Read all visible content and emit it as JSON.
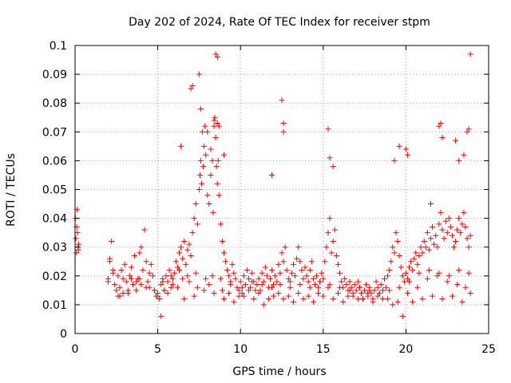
{
  "chart_data": {
    "type": "scatter",
    "title": "Day 202 of 2024, Rate Of TEC Index for receiver stpm",
    "xlabel": "GPS time / hours",
    "ylabel": "ROTI / TECUs",
    "xlim": [
      0,
      25
    ],
    "ylim": [
      0,
      0.1
    ],
    "x_ticks": [
      "0",
      "5",
      "10",
      "15",
      "20",
      "25"
    ],
    "y_ticks": [
      "0",
      "0.01",
      "0.02",
      "0.03",
      "0.04",
      "0.05",
      "0.06",
      "0.07",
      "0.08",
      "0.09",
      "0.1"
    ],
    "grid": true,
    "legend": "none",
    "marker": "+",
    "series_color": "#ff0000",
    "series": [
      {
        "x": [
          0.02,
          0.05,
          0.08,
          0.1,
          0.12,
          0.15,
          0.18,
          0.2,
          0.22,
          2.0,
          2.1,
          2.2,
          2.3,
          2.4,
          2.5,
          2.6,
          2.7,
          2.8,
          2.9,
          3.0,
          3.1,
          3.2,
          3.3,
          3.4,
          3.5,
          3.6,
          3.7,
          3.8,
          3.9,
          4.0,
          4.1,
          4.2,
          4.3,
          4.4,
          4.5,
          4.6,
          4.7,
          4.8,
          4.9,
          5.0,
          5.1,
          5.2,
          5.3,
          5.4,
          5.5,
          5.6,
          5.7,
          5.8,
          5.9,
          6.0,
          6.1,
          6.2,
          6.3,
          6.4,
          6.5,
          6.6,
          6.7,
          6.8,
          6.9,
          7.0,
          7.1,
          7.2,
          7.3,
          7.4,
          7.5,
          7.55,
          7.6,
          7.65,
          7.7,
          7.75,
          7.8,
          7.85,
          7.9,
          8.0,
          8.1,
          8.2,
          8.3,
          8.35,
          8.4,
          8.45,
          8.5,
          8.55,
          8.6,
          8.65,
          8.7,
          8.8,
          8.9,
          9.0,
          9.1,
          9.2,
          9.3,
          9.4,
          9.5,
          9.6,
          9.7,
          9.8,
          9.9,
          10.0,
          10.1,
          10.2,
          10.3,
          10.4,
          10.5,
          10.6,
          10.7,
          10.8,
          10.9,
          11.0,
          11.1,
          11.2,
          11.3,
          11.4,
          11.5,
          11.6,
          11.7,
          11.8,
          11.9,
          12.0,
          12.1,
          12.2,
          12.3,
          12.4,
          12.5,
          12.6,
          12.7,
          12.8,
          12.9,
          13.0,
          13.1,
          13.2,
          13.3,
          13.4,
          13.5,
          13.6,
          13.7,
          13.8,
          13.9,
          14.0,
          14.1,
          14.2,
          14.3,
          14.4,
          14.5,
          14.6,
          14.7,
          14.8,
          14.9,
          15.0,
          15.1,
          15.2,
          15.3,
          15.4,
          15.5,
          15.6,
          15.7,
          15.8,
          15.9,
          16.0,
          16.1,
          16.2,
          16.3,
          16.4,
          16.5,
          16.6,
          16.7,
          16.8,
          16.9,
          17.0,
          17.1,
          17.2,
          17.3,
          17.4,
          17.5,
          17.6,
          17.7,
          17.8,
          17.9,
          18.0,
          18.1,
          18.2,
          18.3,
          18.4,
          18.5,
          18.6,
          18.7,
          18.8,
          18.9,
          19.0,
          19.1,
          19.2,
          19.3,
          19.4,
          19.5,
          19.6,
          19.7,
          19.8,
          19.9,
          20.0,
          20.1,
          20.2,
          20.3,
          20.4,
          20.5,
          20.6,
          20.7,
          20.8,
          20.9,
          21.0,
          21.1,
          21.2,
          21.3,
          21.4,
          21.5,
          21.6,
          21.7,
          21.8,
          21.9,
          22.0,
          22.1,
          22.2,
          22.3,
          22.4,
          22.5,
          22.6,
          22.7,
          22.8,
          22.9,
          23.0,
          23.1,
          23.2,
          23.3,
          23.4,
          23.5,
          23.6,
          23.7,
          23.8,
          23.9,
          6.4,
          7.0,
          7.1,
          7.5,
          7.6,
          8.0,
          8.2,
          8.4,
          8.5,
          8.6,
          8.6,
          8.7,
          9.0,
          11.9,
          12.5,
          12.6,
          12.6,
          15.3,
          15.4,
          15.6,
          19.3,
          19.6,
          20.0,
          20.1,
          21.5,
          22.0,
          22.1,
          22.2,
          23.0,
          23.2,
          23.5,
          23.7,
          23.8,
          23.9,
          2.0,
          2.6,
          3.4,
          4.0,
          4.8,
          5.2,
          5.6,
          6.2,
          6.6,
          7.2,
          7.8,
          8.4,
          9.0,
          9.6,
          10.2,
          10.8,
          11.4,
          12.0,
          12.6,
          13.2,
          13.8,
          14.4,
          15.0,
          15.6,
          16.2,
          16.8,
          17.4,
          18.0,
          18.6,
          19.2,
          19.8,
          20.4,
          21.0,
          21.6,
          22.2,
          22.8,
          23.4,
          23.9,
          2.3,
          2.9,
          3.7,
          4.3,
          5.0,
          5.4,
          5.9,
          6.5,
          6.9,
          7.4,
          8.1,
          8.9,
          9.3,
          9.9,
          10.5,
          11.1,
          11.7,
          12.3,
          12.9,
          13.5,
          14.1,
          14.7,
          15.3,
          15.9,
          16.5,
          17.1,
          17.7,
          18.3,
          18.9,
          19.5,
          20.1,
          20.7,
          21.3,
          21.9,
          22.5,
          23.1,
          23.6,
          2.1,
          2.7,
          3.2,
          3.9,
          4.5,
          5.3,
          5.8,
          6.3,
          6.8,
          7.3,
          7.9,
          8.3,
          8.8,
          9.4,
          10.1,
          10.7,
          11.3,
          11.9,
          12.4,
          13.0,
          13.6,
          14.2,
          14.8,
          15.4,
          16.0,
          16.6,
          17.2,
          17.8,
          18.4,
          19.0,
          19.6,
          20.2,
          20.8,
          21.4,
          22.0,
          22.6,
          23.2,
          23.8
        ],
        "y": [
          0.04,
          0.033,
          0.028,
          0.037,
          0.043,
          0.035,
          0.03,
          0.029,
          0.031,
          0.019,
          0.025,
          0.032,
          0.021,
          0.017,
          0.015,
          0.013,
          0.016,
          0.022,
          0.019,
          0.024,
          0.018,
          0.014,
          0.02,
          0.023,
          0.017,
          0.027,
          0.015,
          0.019,
          0.028,
          0.03,
          0.022,
          0.036,
          0.025,
          0.018,
          0.016,
          0.024,
          0.02,
          0.015,
          0.013,
          0.014,
          0.012,
          0.017,
          0.019,
          0.015,
          0.02,
          0.018,
          0.022,
          0.016,
          0.019,
          0.021,
          0.025,
          0.023,
          0.028,
          0.03,
          0.026,
          0.032,
          0.024,
          0.029,
          0.031,
          0.027,
          0.035,
          0.04,
          0.045,
          0.038,
          0.05,
          0.055,
          0.06,
          0.052,
          0.07,
          0.058,
          0.065,
          0.072,
          0.062,
          0.048,
          0.045,
          0.055,
          0.06,
          0.042,
          0.072,
          0.075,
          0.068,
          0.058,
          0.052,
          0.06,
          0.048,
          0.038,
          0.032,
          0.028,
          0.025,
          0.022,
          0.02,
          0.018,
          0.024,
          0.021,
          0.019,
          0.016,
          0.015,
          0.018,
          0.014,
          0.02,
          0.017,
          0.022,
          0.019,
          0.016,
          0.021,
          0.018,
          0.015,
          0.017,
          0.019,
          0.015,
          0.021,
          0.018,
          0.023,
          0.02,
          0.016,
          0.019,
          0.022,
          0.017,
          0.02,
          0.018,
          0.024,
          0.021,
          0.028,
          0.025,
          0.03,
          0.022,
          0.019,
          0.018,
          0.021,
          0.024,
          0.02,
          0.026,
          0.03,
          0.025,
          0.022,
          0.019,
          0.023,
          0.02,
          0.018,
          0.022,
          0.025,
          0.019,
          0.017,
          0.02,
          0.016,
          0.018,
          0.021,
          0.019,
          0.025,
          0.03,
          0.035,
          0.04,
          0.028,
          0.032,
          0.036,
          0.027,
          0.024,
          0.021,
          0.018,
          0.016,
          0.019,
          0.017,
          0.015,
          0.018,
          0.016,
          0.014,
          0.017,
          0.015,
          0.018,
          0.016,
          0.014,
          0.012,
          0.015,
          0.017,
          0.013,
          0.016,
          0.014,
          0.012,
          0.015,
          0.018,
          0.016,
          0.014,
          0.017,
          0.015,
          0.019,
          0.016,
          0.02,
          0.022,
          0.025,
          0.03,
          0.028,
          0.035,
          0.032,
          0.027,
          0.023,
          0.02,
          0.018,
          0.021,
          0.019,
          0.023,
          0.025,
          0.022,
          0.026,
          0.028,
          0.024,
          0.027,
          0.03,
          0.028,
          0.032,
          0.03,
          0.035,
          0.029,
          0.033,
          0.037,
          0.031,
          0.034,
          0.03,
          0.038,
          0.042,
          0.036,
          0.033,
          0.039,
          0.035,
          0.04,
          0.037,
          0.034,
          0.03,
          0.032,
          0.036,
          0.04,
          0.035,
          0.038,
          0.042,
          0.037,
          0.033,
          0.03,
          0.034,
          0.065,
          0.085,
          0.086,
          0.09,
          0.078,
          0.07,
          0.064,
          0.074,
          0.097,
          0.096,
          0.073,
          0.072,
          0.062,
          0.055,
          0.081,
          0.073,
          0.07,
          0.071,
          0.061,
          0.058,
          0.06,
          0.065,
          0.064,
          0.062,
          0.045,
          0.072,
          0.073,
          0.068,
          0.067,
          0.06,
          0.062,
          0.07,
          0.071,
          0.097,
          0.018,
          0.02,
          0.019,
          0.017,
          0.015,
          0.006,
          0.014,
          0.016,
          0.012,
          0.013,
          0.015,
          0.014,
          0.012,
          0.011,
          0.013,
          0.012,
          0.01,
          0.013,
          0.012,
          0.011,
          0.012,
          0.011,
          0.013,
          0.012,
          0.011,
          0.013,
          0.012,
          0.011,
          0.012,
          0.01,
          0.006,
          0.011,
          0.012,
          0.013,
          0.012,
          0.013,
          0.011,
          0.014,
          0.022,
          0.014,
          0.018,
          0.016,
          0.013,
          0.015,
          0.017,
          0.019,
          0.018,
          0.016,
          0.017,
          0.015,
          0.014,
          0.013,
          0.015,
          0.014,
          0.012,
          0.014,
          0.013,
          0.014,
          0.013,
          0.014,
          0.016,
          0.014,
          0.013,
          0.012,
          0.014,
          0.013,
          0.012,
          0.011,
          0.014,
          0.016,
          0.019,
          0.02,
          0.018,
          0.017,
          0.016,
          0.026,
          0.013,
          0.015,
          0.019,
          0.021,
          0.018,
          0.02,
          0.022,
          0.02,
          0.021,
          0.019,
          0.02,
          0.019,
          0.017,
          0.016,
          0.018,
          0.017,
          0.016,
          0.017,
          0.016,
          0.017,
          0.016,
          0.018,
          0.017,
          0.016,
          0.015,
          0.016,
          0.015,
          0.014,
          0.015,
          0.016,
          0.018,
          0.021,
          0.022,
          0.021,
          0.02,
          0.022,
          0.021
        ]
      }
    ]
  }
}
